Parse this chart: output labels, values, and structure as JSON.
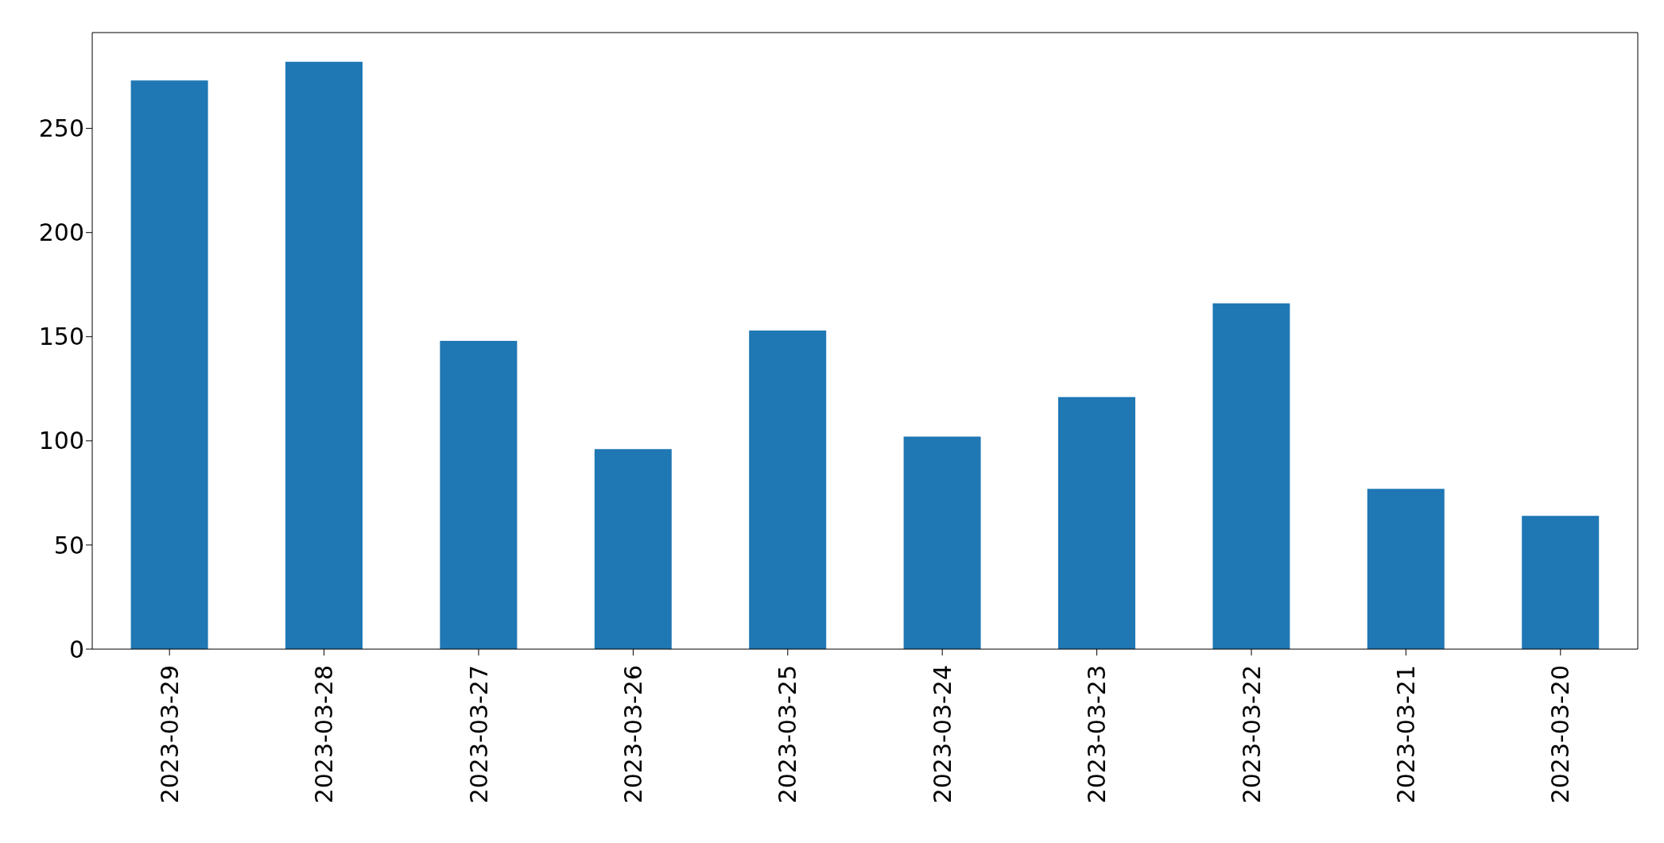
{
  "chart_data": {
    "type": "bar",
    "categories": [
      "2023-03-29",
      "2023-03-28",
      "2023-03-27",
      "2023-03-26",
      "2023-03-25",
      "2023-03-24",
      "2023-03-23",
      "2023-03-22",
      "2023-03-21",
      "2023-03-20"
    ],
    "values": [
      273,
      282,
      148,
      96,
      153,
      102,
      121,
      166,
      77,
      64
    ],
    "color": "#1f77b4",
    "ylim": [
      0,
      296
    ],
    "yticks": [
      0,
      50,
      100,
      150,
      200,
      250
    ],
    "grid": false,
    "legend": false
  }
}
